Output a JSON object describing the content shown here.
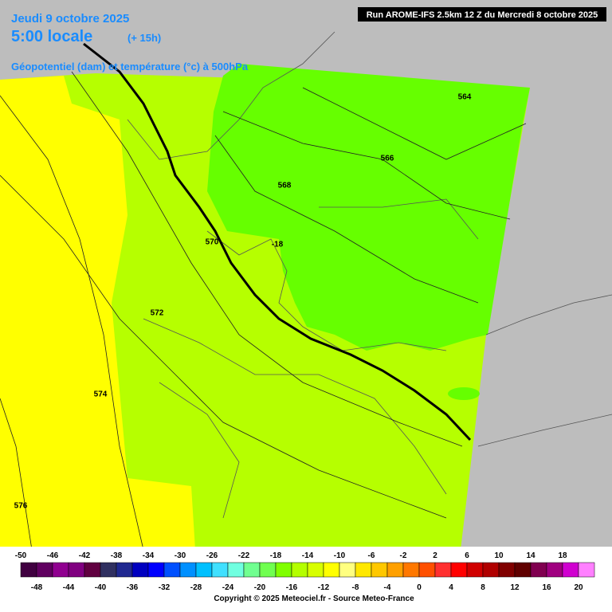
{
  "header": {
    "date": "Jeudi 9 octobre 2025",
    "time": "5:00 locale",
    "lead": "(+ 15h)",
    "subtitle": "Géopotentiel (dam) et température (°c) à 500hPa",
    "run": "Run AROME-IFS 2.5km 12 Z du Mercredi 8 octobre 2025"
  },
  "contour_labels": [
    564,
    566,
    568,
    570,
    572,
    574,
    576,
    -18
  ],
  "legend": {
    "top_labels": [
      -50,
      -46,
      -42,
      -38,
      -34,
      -30,
      -26,
      -22,
      -18,
      -14,
      -10,
      -6,
      -2,
      2,
      6,
      10,
      14,
      18
    ],
    "bottom_labels": [
      -48,
      -44,
      -40,
      -36,
      -32,
      -28,
      -24,
      -20,
      -16,
      -12,
      -8,
      -4,
      0,
      4,
      8,
      12,
      16,
      20
    ],
    "colors": [
      "#400040",
      "#600060",
      "#900090",
      "#800080",
      "#600040",
      "#303060",
      "#202890",
      "#0000c0",
      "#0000ff",
      "#0050ff",
      "#0090ff",
      "#00c0ff",
      "#40e0ff",
      "#70ffe0",
      "#70ff90",
      "#70ff50",
      "#80ff00",
      "#b4ff00",
      "#d8ff00",
      "#ffff00",
      "#ffff80",
      "#ffe800",
      "#ffc800",
      "#ffa000",
      "#ff7800",
      "#ff5000",
      "#ff3030",
      "#ff0000",
      "#d00000",
      "#b00000",
      "#800000",
      "#600000",
      "#800050",
      "#a00080",
      "#d000d0",
      "#ff80ff"
    ]
  },
  "copyright": "Copyright © 2025 Meteociel.fr - Source Meteo-France"
}
